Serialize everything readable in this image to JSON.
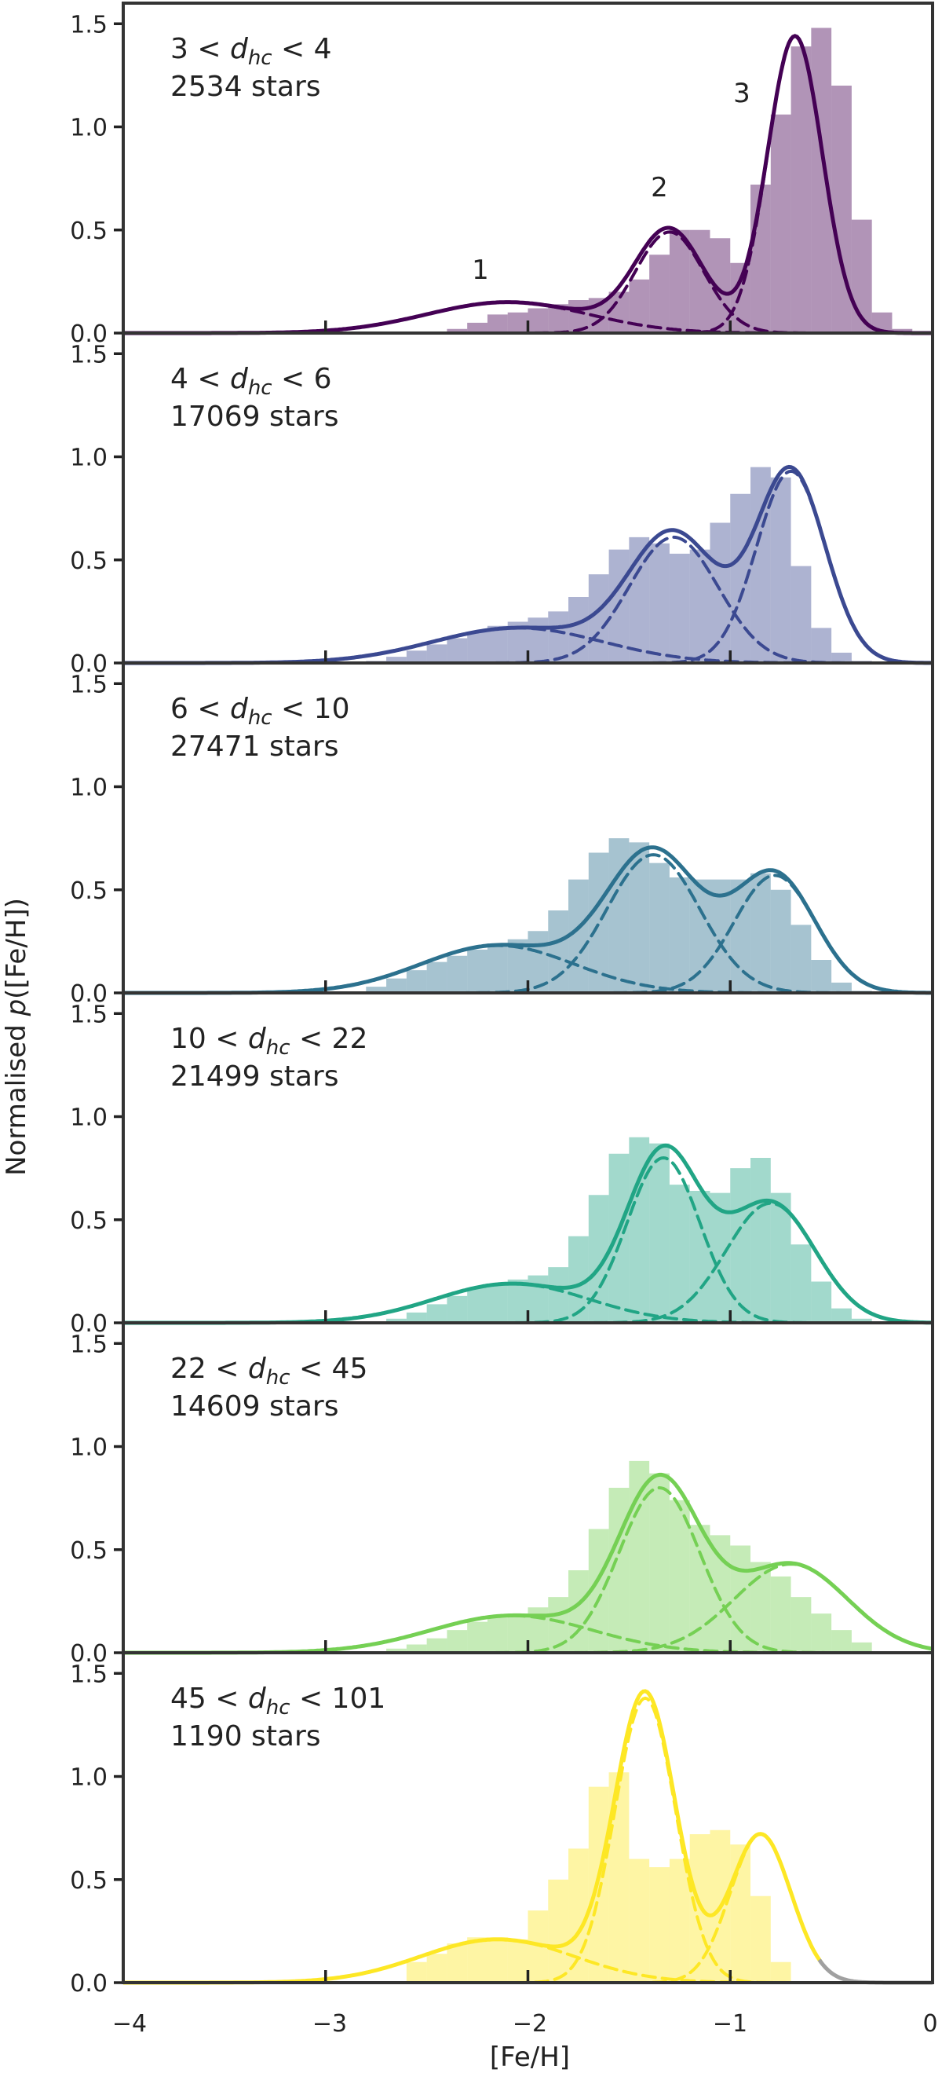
{
  "figure": {
    "ylabel_prefix": "Normalised ",
    "ylabel_p": "p",
    "ylabel_suffix": "([Fe/H])",
    "xlabel": "[Fe/H]",
    "xticklabels": [
      "−4",
      "−3",
      "−2",
      "−1",
      "0"
    ],
    "yticklabels": [
      "0.0",
      "0.5",
      "1.0",
      "1.5"
    ],
    "component_labels": [
      "1",
      "2",
      "3"
    ]
  },
  "chart_data": [
    {
      "type": "bar",
      "title_lo": "3",
      "title_hi": "4",
      "var_main": "d",
      "var_sub": "hc",
      "stars": "2534 stars",
      "color": "#440154",
      "xlim": [
        -4.0,
        0.0
      ],
      "ylim": [
        0.0,
        1.6
      ],
      "bin_edges_start": -2.5,
      "bin_width": 0.1,
      "hist": [
        0.0,
        0.02,
        0.05,
        0.09,
        0.1,
        0.12,
        0.14,
        0.16,
        0.17,
        0.2,
        0.26,
        0.38,
        0.5,
        0.5,
        0.46,
        0.34,
        0.72,
        1.06,
        1.39,
        1.48,
        1.2,
        0.55,
        0.1,
        0.02,
        0.0
      ],
      "components": [
        {
          "mu": -2.1,
          "sigma": 0.4,
          "amp": 0.15
        },
        {
          "mu": -1.3,
          "sigma": 0.17,
          "amp": 0.49
        },
        {
          "mu": -0.68,
          "sigma": 0.135,
          "amp": 1.44
        }
      ]
    },
    {
      "type": "bar",
      "title_lo": "4",
      "title_hi": "6",
      "var_main": "d",
      "var_sub": "hc",
      "stars": "17069 stars",
      "color": "#3b4991",
      "xlim": [
        -4.0,
        0.0
      ],
      "ylim": [
        0.0,
        1.6
      ],
      "bin_edges_start": -2.8,
      "bin_width": 0.1,
      "hist": [
        0.01,
        0.03,
        0.06,
        0.09,
        0.12,
        0.15,
        0.18,
        0.2,
        0.22,
        0.25,
        0.32,
        0.43,
        0.55,
        0.61,
        0.58,
        0.53,
        0.55,
        0.68,
        0.82,
        0.95,
        0.9,
        0.47,
        0.17,
        0.05,
        0.01,
        0.0
      ],
      "components": [
        {
          "mu": -2.05,
          "sigma": 0.42,
          "amp": 0.17
        },
        {
          "mu": -1.28,
          "sigma": 0.22,
          "amp": 0.61
        },
        {
          "mu": -0.7,
          "sigma": 0.17,
          "amp": 0.93
        }
      ]
    },
    {
      "type": "bar",
      "title_lo": "6",
      "title_hi": "10",
      "var_main": "d",
      "var_sub": "hc",
      "stars": "27471 stars",
      "color": "#2c718e",
      "xlim": [
        -4.0,
        0.0
      ],
      "ylim": [
        0.0,
        1.6
      ],
      "bin_edges_start": -2.8,
      "bin_width": 0.1,
      "hist": [
        0.03,
        0.07,
        0.11,
        0.15,
        0.18,
        0.21,
        0.24,
        0.26,
        0.3,
        0.4,
        0.55,
        0.68,
        0.75,
        0.73,
        0.63,
        0.56,
        0.55,
        0.55,
        0.55,
        0.58,
        0.5,
        0.33,
        0.16,
        0.05,
        0.01,
        0.0
      ],
      "components": [
        {
          "mu": -2.15,
          "sigma": 0.38,
          "amp": 0.23
        },
        {
          "mu": -1.38,
          "sigma": 0.23,
          "amp": 0.67
        },
        {
          "mu": -0.78,
          "sigma": 0.2,
          "amp": 0.57
        }
      ]
    },
    {
      "type": "bar",
      "title_lo": "10",
      "title_hi": "22",
      "var_main": "d",
      "var_sub": "hc",
      "stars": "21499 stars",
      "color": "#21a585",
      "xlim": [
        -4.0,
        0.0
      ],
      "ylim": [
        0.0,
        1.6
      ],
      "bin_edges_start": -2.7,
      "bin_width": 0.1,
      "hist": [
        0.02,
        0.05,
        0.09,
        0.13,
        0.17,
        0.19,
        0.21,
        0.23,
        0.27,
        0.42,
        0.62,
        0.82,
        0.9,
        0.87,
        0.67,
        0.64,
        0.63,
        0.75,
        0.8,
        0.63,
        0.38,
        0.2,
        0.07,
        0.02,
        0.0
      ],
      "components": [
        {
          "mu": -2.08,
          "sigma": 0.38,
          "amp": 0.19
        },
        {
          "mu": -1.33,
          "sigma": 0.18,
          "amp": 0.8
        },
        {
          "mu": -0.8,
          "sigma": 0.22,
          "amp": 0.58
        }
      ]
    },
    {
      "type": "bar",
      "title_lo": "22",
      "title_hi": "45",
      "var_main": "d",
      "var_sub": "hc",
      "stars": "14609 stars",
      "color": "#75d054",
      "xlim": [
        -4.0,
        0.0
      ],
      "ylim": [
        0.0,
        1.6
      ],
      "bin_edges_start": -2.7,
      "bin_width": 0.1,
      "hist": [
        0.02,
        0.04,
        0.07,
        0.11,
        0.15,
        0.17,
        0.19,
        0.22,
        0.27,
        0.4,
        0.6,
        0.8,
        0.93,
        0.87,
        0.74,
        0.62,
        0.57,
        0.52,
        0.44,
        0.37,
        0.27,
        0.19,
        0.11,
        0.05,
        0.0
      ],
      "components": [
        {
          "mu": -2.08,
          "sigma": 0.4,
          "amp": 0.18
        },
        {
          "mu": -1.35,
          "sigma": 0.2,
          "amp": 0.8
        },
        {
          "mu": -0.7,
          "sigma": 0.28,
          "amp": 0.43
        }
      ]
    },
    {
      "type": "bar",
      "title_lo": "45",
      "title_hi": "101",
      "var_main": "d",
      "var_sub": "hc",
      "stars": "1190 stars",
      "color": "#fde725",
      "xlim": [
        -4.0,
        0.0
      ],
      "ylim": [
        0.0,
        1.6
      ],
      "bin_edges_start": -2.6,
      "bin_width": 0.1,
      "hist": [
        0.1,
        0.14,
        0.19,
        0.22,
        0.22,
        0.21,
        0.35,
        0.5,
        0.65,
        0.95,
        1.02,
        0.6,
        0.56,
        0.6,
        0.72,
        0.74,
        0.67,
        0.42,
        0.1,
        0.0
      ],
      "components": [
        {
          "mu": -2.15,
          "sigma": 0.38,
          "amp": 0.21
        },
        {
          "mu": -1.42,
          "sigma": 0.15,
          "amp": 1.38
        },
        {
          "mu": -0.85,
          "sigma": 0.15,
          "amp": 0.72
        }
      ],
      "tail_color": "#a0a0a0",
      "tail_start": -0.55
    }
  ]
}
